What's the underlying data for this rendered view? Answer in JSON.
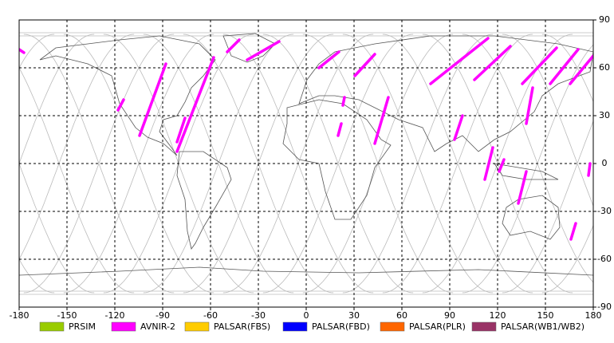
{
  "chart_data": {
    "type": "map",
    "xlim": [
      -180,
      180
    ],
    "ylim": [
      -90,
      90
    ],
    "xticks": [
      -180,
      -150,
      -120,
      -90,
      -60,
      -30,
      0,
      30,
      60,
      90,
      120,
      150,
      180
    ],
    "yticks": [
      -90,
      -60,
      -30,
      0,
      30,
      60,
      90
    ],
    "grid": true,
    "series": [
      {
        "name": "PRSIM",
        "color": "#99cc00"
      },
      {
        "name": "AVNIR-2",
        "color": "#ff00ff",
        "segments": [
          {
            "lon": [
              -180,
              -177
            ],
            "lat": [
              71.5,
              69.5
            ]
          },
          {
            "lon": [
              -42,
              -49.5
            ],
            "lat": [
              77.5,
              70
            ]
          },
          {
            "lon": [
              -17,
              -37
            ],
            "lat": [
              76.5,
              65
            ]
          },
          {
            "lon": [
              -88,
              -104.5
            ],
            "lat": [
              62.5,
              17.5
            ]
          },
          {
            "lon": [
              -114.5,
              -118
            ],
            "lat": [
              40,
              33.5
            ]
          },
          {
            "lon": [
              -58,
              -81
            ],
            "lat": [
              66.5,
              7.5
            ]
          },
          {
            "lon": [
              -76,
              -81
            ],
            "lat": [
              28.5,
              13.5
            ]
          },
          {
            "lon": [
              20.5,
              8
            ],
            "lat": [
              70,
              60
            ]
          },
          {
            "lon": [
              43,
              30.5
            ],
            "lat": [
              68.5,
              55
            ]
          },
          {
            "lon": [
              51.5,
              43
            ],
            "lat": [
              41.5,
              12.5
            ]
          },
          {
            "lon": [
              24,
              23
            ],
            "lat": [
              41.5,
              36.5
            ]
          },
          {
            "lon": [
              22,
              20
            ],
            "lat": [
              25,
              17.5
            ]
          },
          {
            "lon": [
              114,
              78
            ],
            "lat": [
              78.5,
              50
            ]
          },
          {
            "lon": [
              128,
              105.5
            ],
            "lat": [
              73.5,
              52.5
            ]
          },
          {
            "lon": [
              157,
              135.5
            ],
            "lat": [
              72.5,
              50
            ]
          },
          {
            "lon": [
              170.5,
              153
            ],
            "lat": [
              71.5,
              50
            ]
          },
          {
            "lon": [
              180,
              165.5
            ],
            "lat": [
              67.5,
              50
            ]
          },
          {
            "lon": [
              98,
              93
            ],
            "lat": [
              30,
              15
            ]
          },
          {
            "lon": [
              117,
              112
            ],
            "lat": [
              10,
              -10
            ]
          },
          {
            "lon": [
              142,
              138
            ],
            "lat": [
              47.5,
              25
            ]
          },
          {
            "lon": [
              138,
              133
            ],
            "lat": [
              -5,
              -25
            ]
          },
          {
            "lon": [
              178,
              177
            ],
            "lat": [
              0,
              -7.5
            ]
          },
          {
            "lon": [
              169,
              166
            ],
            "lat": [
              -37.5,
              -47.5
            ]
          },
          {
            "lon": [
              124,
              121
            ],
            "lat": [
              2.5,
              -5
            ]
          }
        ]
      },
      {
        "name": "PALSAR(FBS)",
        "color": "#ffcc00"
      },
      {
        "name": "PALSAR(FBD)",
        "color": "#0000ff"
      },
      {
        "name": "PALSAR(PLR)",
        "color": "#ff6600"
      },
      {
        "name": "PALSAR(WB1/WB2)",
        "color": "#993366"
      }
    ]
  }
}
